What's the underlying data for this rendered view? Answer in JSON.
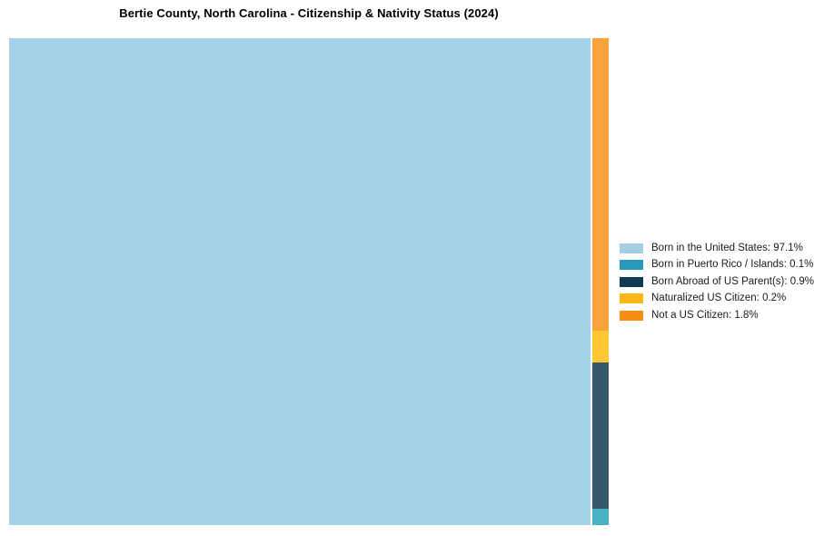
{
  "chart_data": {
    "type": "treemap",
    "title": "Bertie County, North Carolina - Citizenship & Nativity Status (2024)",
    "unit": "%",
    "legend_position": "right-center",
    "background_color": "#ffffff",
    "items": [
      {
        "id": "born_us",
        "label": "Born in the United States: 97.1%",
        "name": "Born in the United States",
        "value": 97.1,
        "legend_color": "#A6CEE3",
        "tile_color": "#A3D2E9"
      },
      {
        "id": "puerto_rico",
        "label": "Born in Puerto Rico / Islands: 0.1%",
        "name": "Born in Puerto Rico / Islands",
        "value": 0.1,
        "legend_color": "#2899B8",
        "tile_color": "#4AB2C7"
      },
      {
        "id": "born_abroad",
        "label": "Born Abroad of US Parent(s): 0.9%",
        "name": "Born Abroad of US Parent(s)",
        "value": 0.9,
        "legend_color": "#0E3A53",
        "tile_color": "#35586D"
      },
      {
        "id": "naturalized",
        "label": "Naturalized US Citizen: 0.2%",
        "name": "Naturalized US Citizen",
        "value": 0.2,
        "legend_color": "#FDB714",
        "tile_color": "#FEC733"
      },
      {
        "id": "not_citizen",
        "label": "Not a US Citizen: 1.8%",
        "name": "Not a US Citizen",
        "value": 1.8,
        "legend_color": "#F68D13",
        "tile_color": "#F9A33D"
      }
    ],
    "main_tile_id": "born_us",
    "strip_order_top_to_bottom": [
      "not_citizen",
      "naturalized",
      "born_abroad",
      "puerto_rico"
    ]
  }
}
